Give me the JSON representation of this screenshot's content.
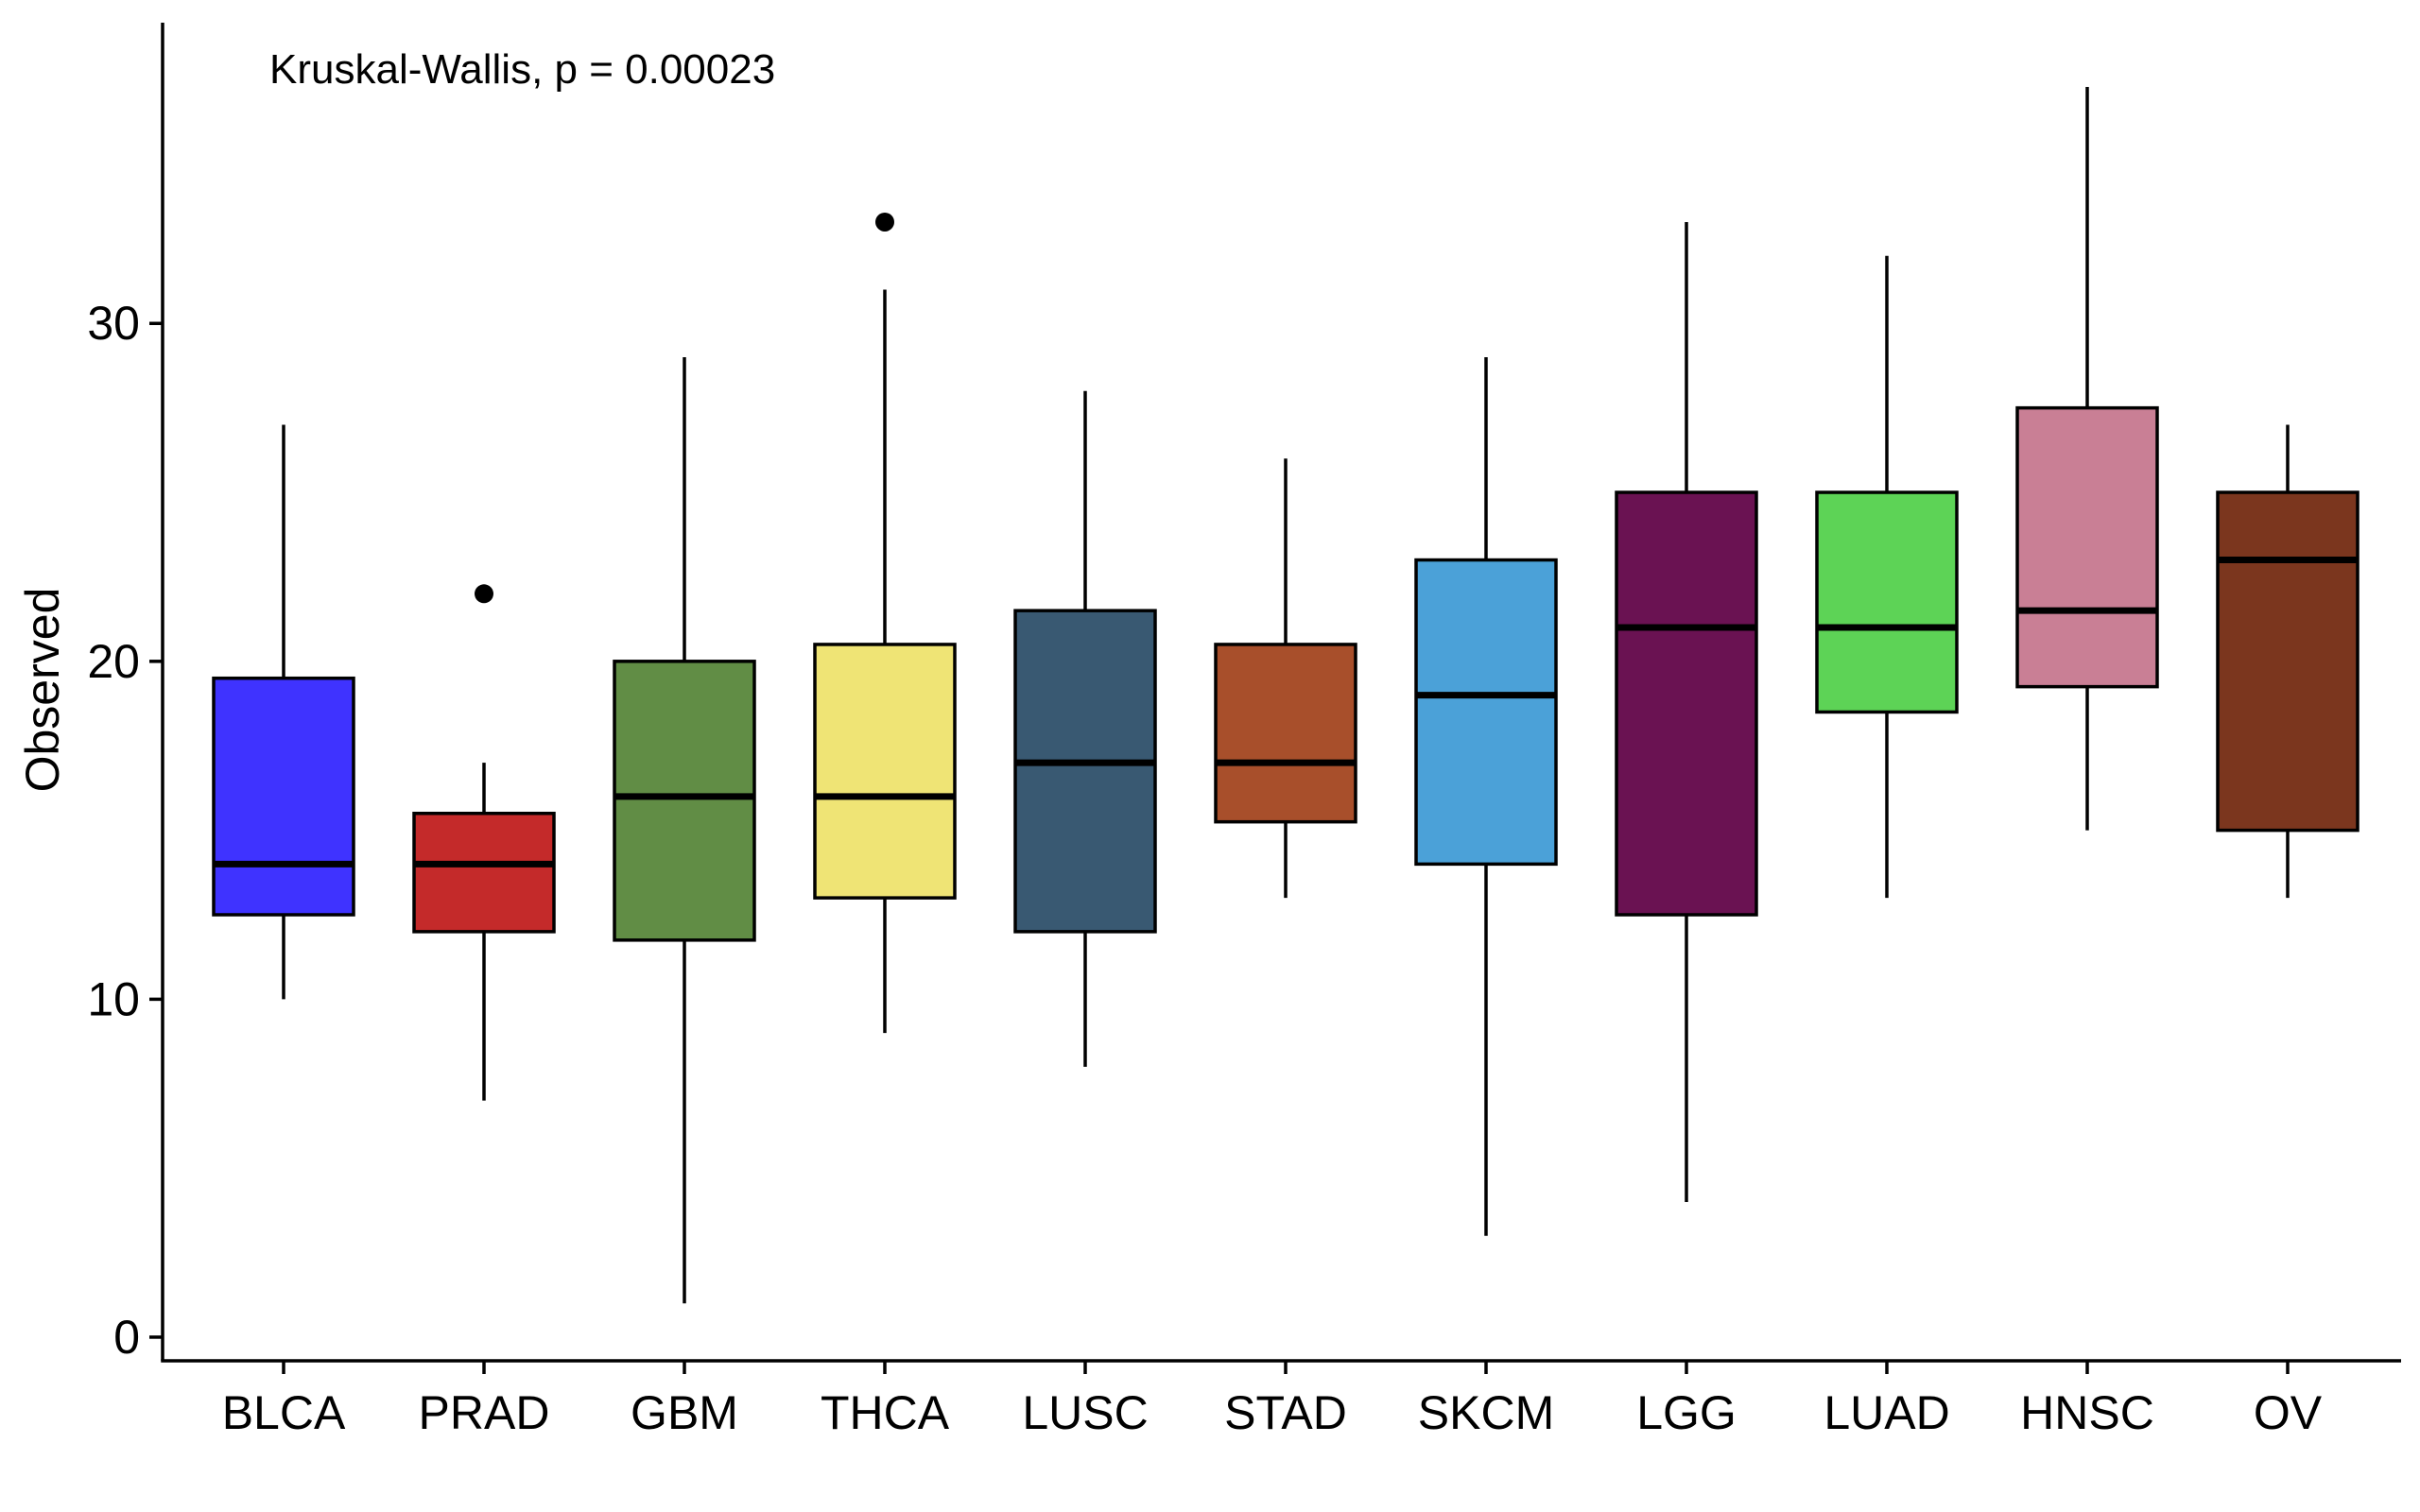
{
  "chart_data": {
    "type": "box",
    "title": "",
    "xlabel": "",
    "ylabel": "Observed",
    "ylim": [
      -0.7,
      38.9
    ],
    "yticks": [
      0,
      10,
      20,
      30
    ],
    "annotation": "Kruskal-Wallis, p = 0.00023",
    "grid": false,
    "legend": "none",
    "categories": [
      "BLCA",
      "PRAD",
      "GBM",
      "THCA",
      "LUSC",
      "STAD",
      "SKCM",
      "LGG",
      "LUAD",
      "HNSC",
      "OV"
    ],
    "series": [
      {
        "category": "BLCA",
        "color": "#3F33FF",
        "min": 10,
        "q1": 12.5,
        "median": 14,
        "q3": 19.5,
        "max": 27,
        "outliers": []
      },
      {
        "category": "PRAD",
        "color": "#C42A2A",
        "min": 7,
        "q1": 12,
        "median": 14,
        "q3": 15.5,
        "max": 17,
        "outliers": [
          22
        ]
      },
      {
        "category": "GBM",
        "color": "#618D45",
        "min": 1,
        "q1": 11.75,
        "median": 16,
        "q3": 20,
        "max": 29,
        "outliers": []
      },
      {
        "category": "THCA",
        "color": "#EFE475",
        "min": 9,
        "q1": 13,
        "median": 16,
        "q3": 20.5,
        "max": 31,
        "outliers": [
          33
        ]
      },
      {
        "category": "LUSC",
        "color": "#395972",
        "min": 8,
        "q1": 12,
        "median": 17,
        "q3": 21.5,
        "max": 28,
        "outliers": []
      },
      {
        "category": "STAD",
        "color": "#A84F2B",
        "min": 13,
        "q1": 15.25,
        "median": 17,
        "q3": 20.5,
        "max": 26,
        "outliers": []
      },
      {
        "category": "SKCM",
        "color": "#4BA1D8",
        "min": 3,
        "q1": 14,
        "median": 19,
        "q3": 23,
        "max": 29,
        "outliers": []
      },
      {
        "category": "LGG",
        "color": "#6A1252",
        "min": 4,
        "q1": 12.5,
        "median": 21,
        "q3": 25,
        "max": 33,
        "outliers": []
      },
      {
        "category": "LUAD",
        "color": "#5DD356",
        "min": 13,
        "q1": 18.5,
        "median": 21,
        "q3": 25,
        "max": 32,
        "outliers": []
      },
      {
        "category": "HNSC",
        "color": "#C97F95",
        "min": 15,
        "q1": 19.25,
        "median": 21.5,
        "q3": 27.5,
        "max": 37,
        "outliers": []
      },
      {
        "category": "OV",
        "color": "#7B361E",
        "min": 13,
        "q1": 15,
        "median": 23,
        "q3": 25,
        "max": 27,
        "outliers": []
      }
    ]
  }
}
